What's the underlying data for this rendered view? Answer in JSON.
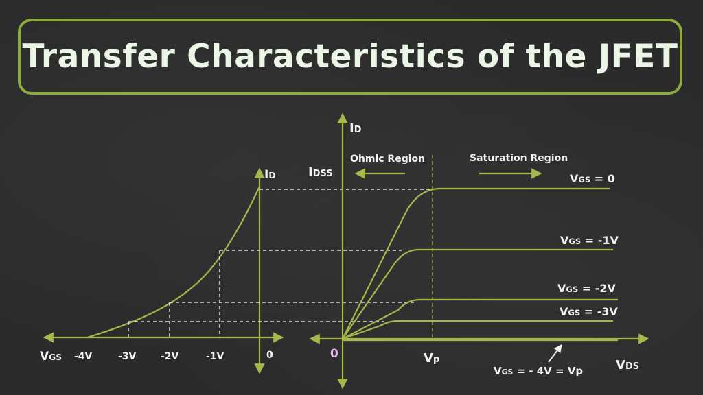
{
  "title": "Transfer Characteristics of the JFET",
  "colors": {
    "curve": "#a4b84c",
    "frame": "#8faa3e",
    "text": "#f2f2f2",
    "origin": "#e6b6ea",
    "background": "#2b2b2b"
  },
  "transfer_plot": {
    "vertical_axis_label": {
      "main": "I",
      "sub": "D"
    },
    "horizontal_axis_label": {
      "main": "V",
      "sub": "GS"
    },
    "tick_labels": [
      "-4V",
      "-3V",
      "-2V",
      "-1V",
      "0"
    ]
  },
  "output_plot": {
    "vertical_axis_label": {
      "main": "I",
      "sub": "D"
    },
    "horizontal_axis_label": {
      "main": "V",
      "sub": "DS"
    },
    "idss_label": {
      "main": "I",
      "sub": "DSS"
    },
    "origin_label": "0",
    "vp_label": {
      "main": "V",
      "sub": "p"
    },
    "ohmic_region_label": "Ohmic Region",
    "saturation_region_label": "Saturation Region",
    "curve_labels": [
      {
        "main": "V",
        "sub": "GS",
        "rest": " = 0"
      },
      {
        "main": "V",
        "sub": "GS",
        "rest": " = -1V"
      },
      {
        "main": "V",
        "sub": "GS",
        "rest": " = -2V"
      },
      {
        "main": "V",
        "sub": "GS",
        "rest": " = -3V"
      }
    ],
    "cutoff_label": {
      "main": "V",
      "sub": "GS",
      "rest": " = - 4V = Vp"
    }
  }
}
